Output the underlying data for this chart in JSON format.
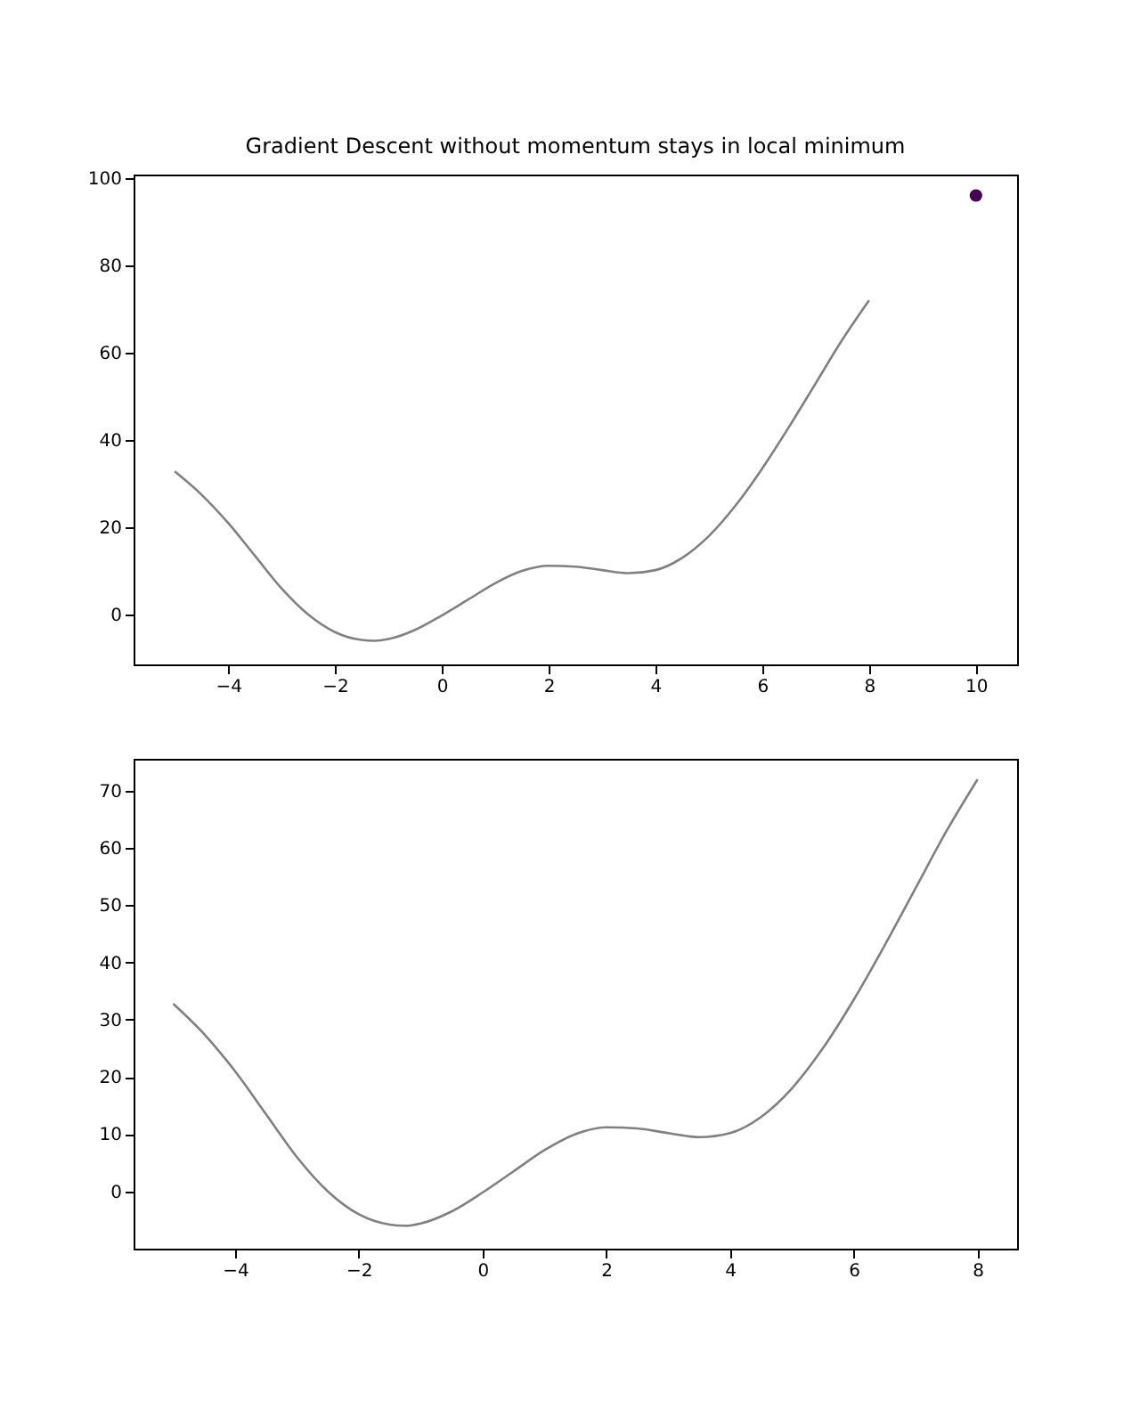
{
  "chart_data": [
    {
      "type": "line",
      "title": "Gradient Descent without momentum stays in local minimum",
      "xlim": [
        -5.77,
        10.77
      ],
      "xticks": [
        -4,
        -2,
        0,
        2,
        4,
        6,
        8,
        10
      ],
      "ylim": [
        -11.4,
        100.8
      ],
      "yticks": [
        0,
        20,
        40,
        60,
        80,
        100
      ],
      "grid": false,
      "series": [
        {
          "type": "line",
          "color": "#808080",
          "x": [
            -5,
            -4.5,
            -4,
            -3.5,
            -3,
            -2.5,
            -2,
            -1.5,
            -1.25,
            -1,
            -0.5,
            0,
            0.5,
            1,
            1.5,
            2,
            2.5,
            3,
            3.5,
            4,
            4.5,
            5,
            5.5,
            6,
            6.5,
            7,
            7.5,
            8
          ],
          "values": [
            32.8,
            27.5,
            21,
            13.5,
            6,
            0,
            -4,
            -5.8,
            -6,
            -5.6,
            -3.5,
            -0.2,
            3.5,
            7.2,
            10,
            11.2,
            11,
            10.2,
            9.5,
            10.2,
            13,
            18,
            25,
            33.5,
            43,
            53,
            63,
            72
          ]
        },
        {
          "type": "scatter",
          "color": "#440154",
          "marker": "circle",
          "x": [
            10
          ],
          "values": [
            96
          ]
        }
      ]
    },
    {
      "type": "line",
      "xlim": [
        -5.64,
        8.64
      ],
      "xticks": [
        -4,
        -2,
        0,
        2,
        4,
        6,
        8
      ],
      "ylim": [
        -10,
        75.6
      ],
      "yticks": [
        0,
        10,
        20,
        30,
        40,
        50,
        60,
        70
      ],
      "grid": false,
      "series": [
        {
          "type": "line",
          "color": "#808080",
          "x": [
            -5,
            -4.5,
            -4,
            -3.5,
            -3,
            -2.5,
            -2,
            -1.5,
            -1.25,
            -1,
            -0.5,
            0,
            0.5,
            1,
            1.5,
            2,
            2.5,
            3,
            3.5,
            4,
            4.5,
            5,
            5.5,
            6,
            6.5,
            7,
            7.5,
            8
          ],
          "values": [
            32.8,
            27.5,
            21,
            13.5,
            6,
            0,
            -4,
            -5.8,
            -6,
            -5.6,
            -3.5,
            -0.2,
            3.5,
            7.2,
            10,
            11.2,
            11,
            10.2,
            9.5,
            10.2,
            13,
            18,
            25,
            33.5,
            43,
            53,
            63,
            72
          ]
        }
      ]
    }
  ]
}
